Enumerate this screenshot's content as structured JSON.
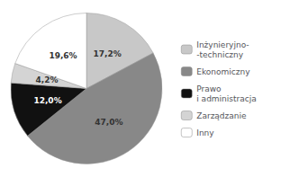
{
  "chart_data": {
    "type": "pie",
    "categories": [
      "Inżynieryjno-\n-techniczny",
      "Ekonomiczny",
      "Prawo\ni administracja",
      "Zarządzanie",
      "Inny"
    ],
    "values": [
      17.2,
      47.0,
      12.0,
      4.2,
      19.6
    ],
    "value_labels": [
      "17,2%",
      "47,0%",
      "12,0%",
      "4,2%",
      "19,6%"
    ],
    "colors": [
      "#c8c8c8",
      "#888888",
      "#111111",
      "#d4d4d4",
      "#ffffff"
    ],
    "data_labels": true,
    "legend": "right"
  }
}
